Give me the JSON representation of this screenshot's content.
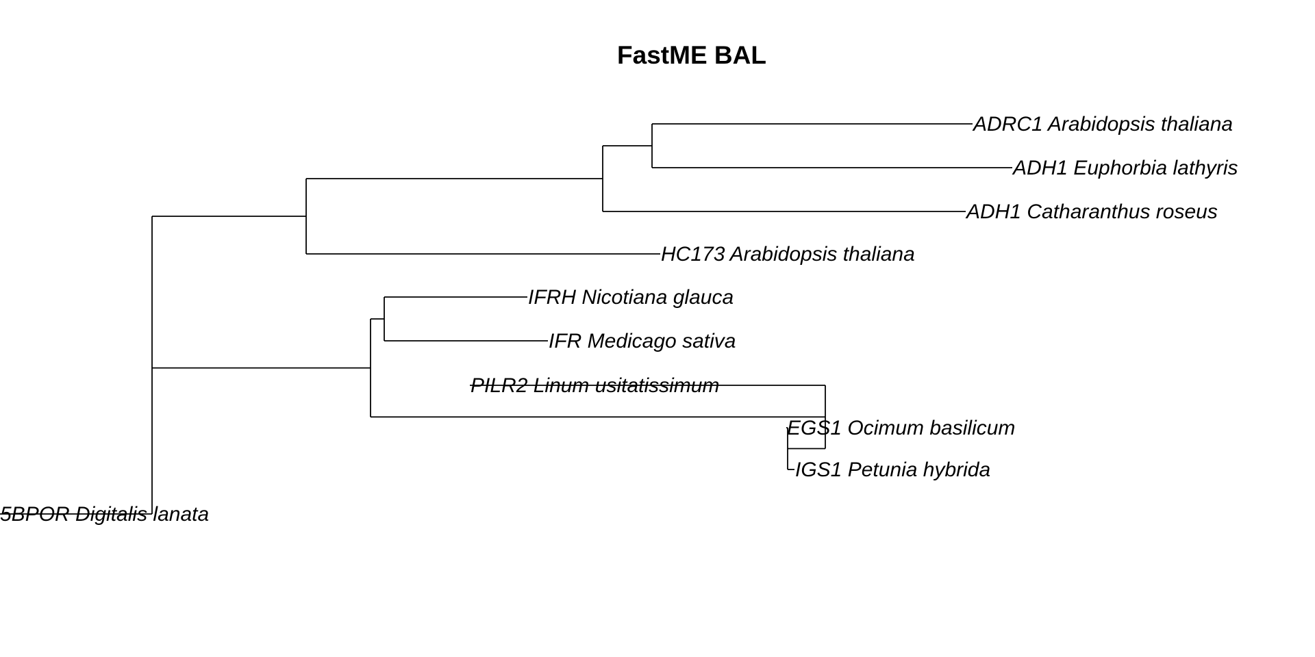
{
  "title": "FastME BAL",
  "tree": {
    "children": [
      {
        "children": [
          {
            "children": [
              {
                "children": [
                  {
                    "label": "ADRC1 Arabidopsis thaliana"
                  },
                  {
                    "label": "ADH1 Euphorbia lathyris"
                  }
                ]
              },
              {
                "label": "ADH1 Catharanthus roseus"
              }
            ]
          },
          {
            "label": "HC173 Arabidopsis thaliana"
          }
        ]
      },
      {
        "children": [
          {
            "children": [
              {
                "label": "IFRH Nicotiana glauca"
              },
              {
                "label": "IFR Medicago sativa"
              }
            ]
          },
          {
            "children": [
              {
                "label": "PILR2 Linum usitatissimum"
              },
              {
                "children": [
                  {
                    "label": "EGS1 Ocimum basilicum"
                  },
                  {
                    "label": "IGS1 Petunia hybrida"
                  }
                ]
              }
            ]
          }
        ]
      },
      {
        "label": "5BPOR Digitalis lanata"
      }
    ]
  }
}
